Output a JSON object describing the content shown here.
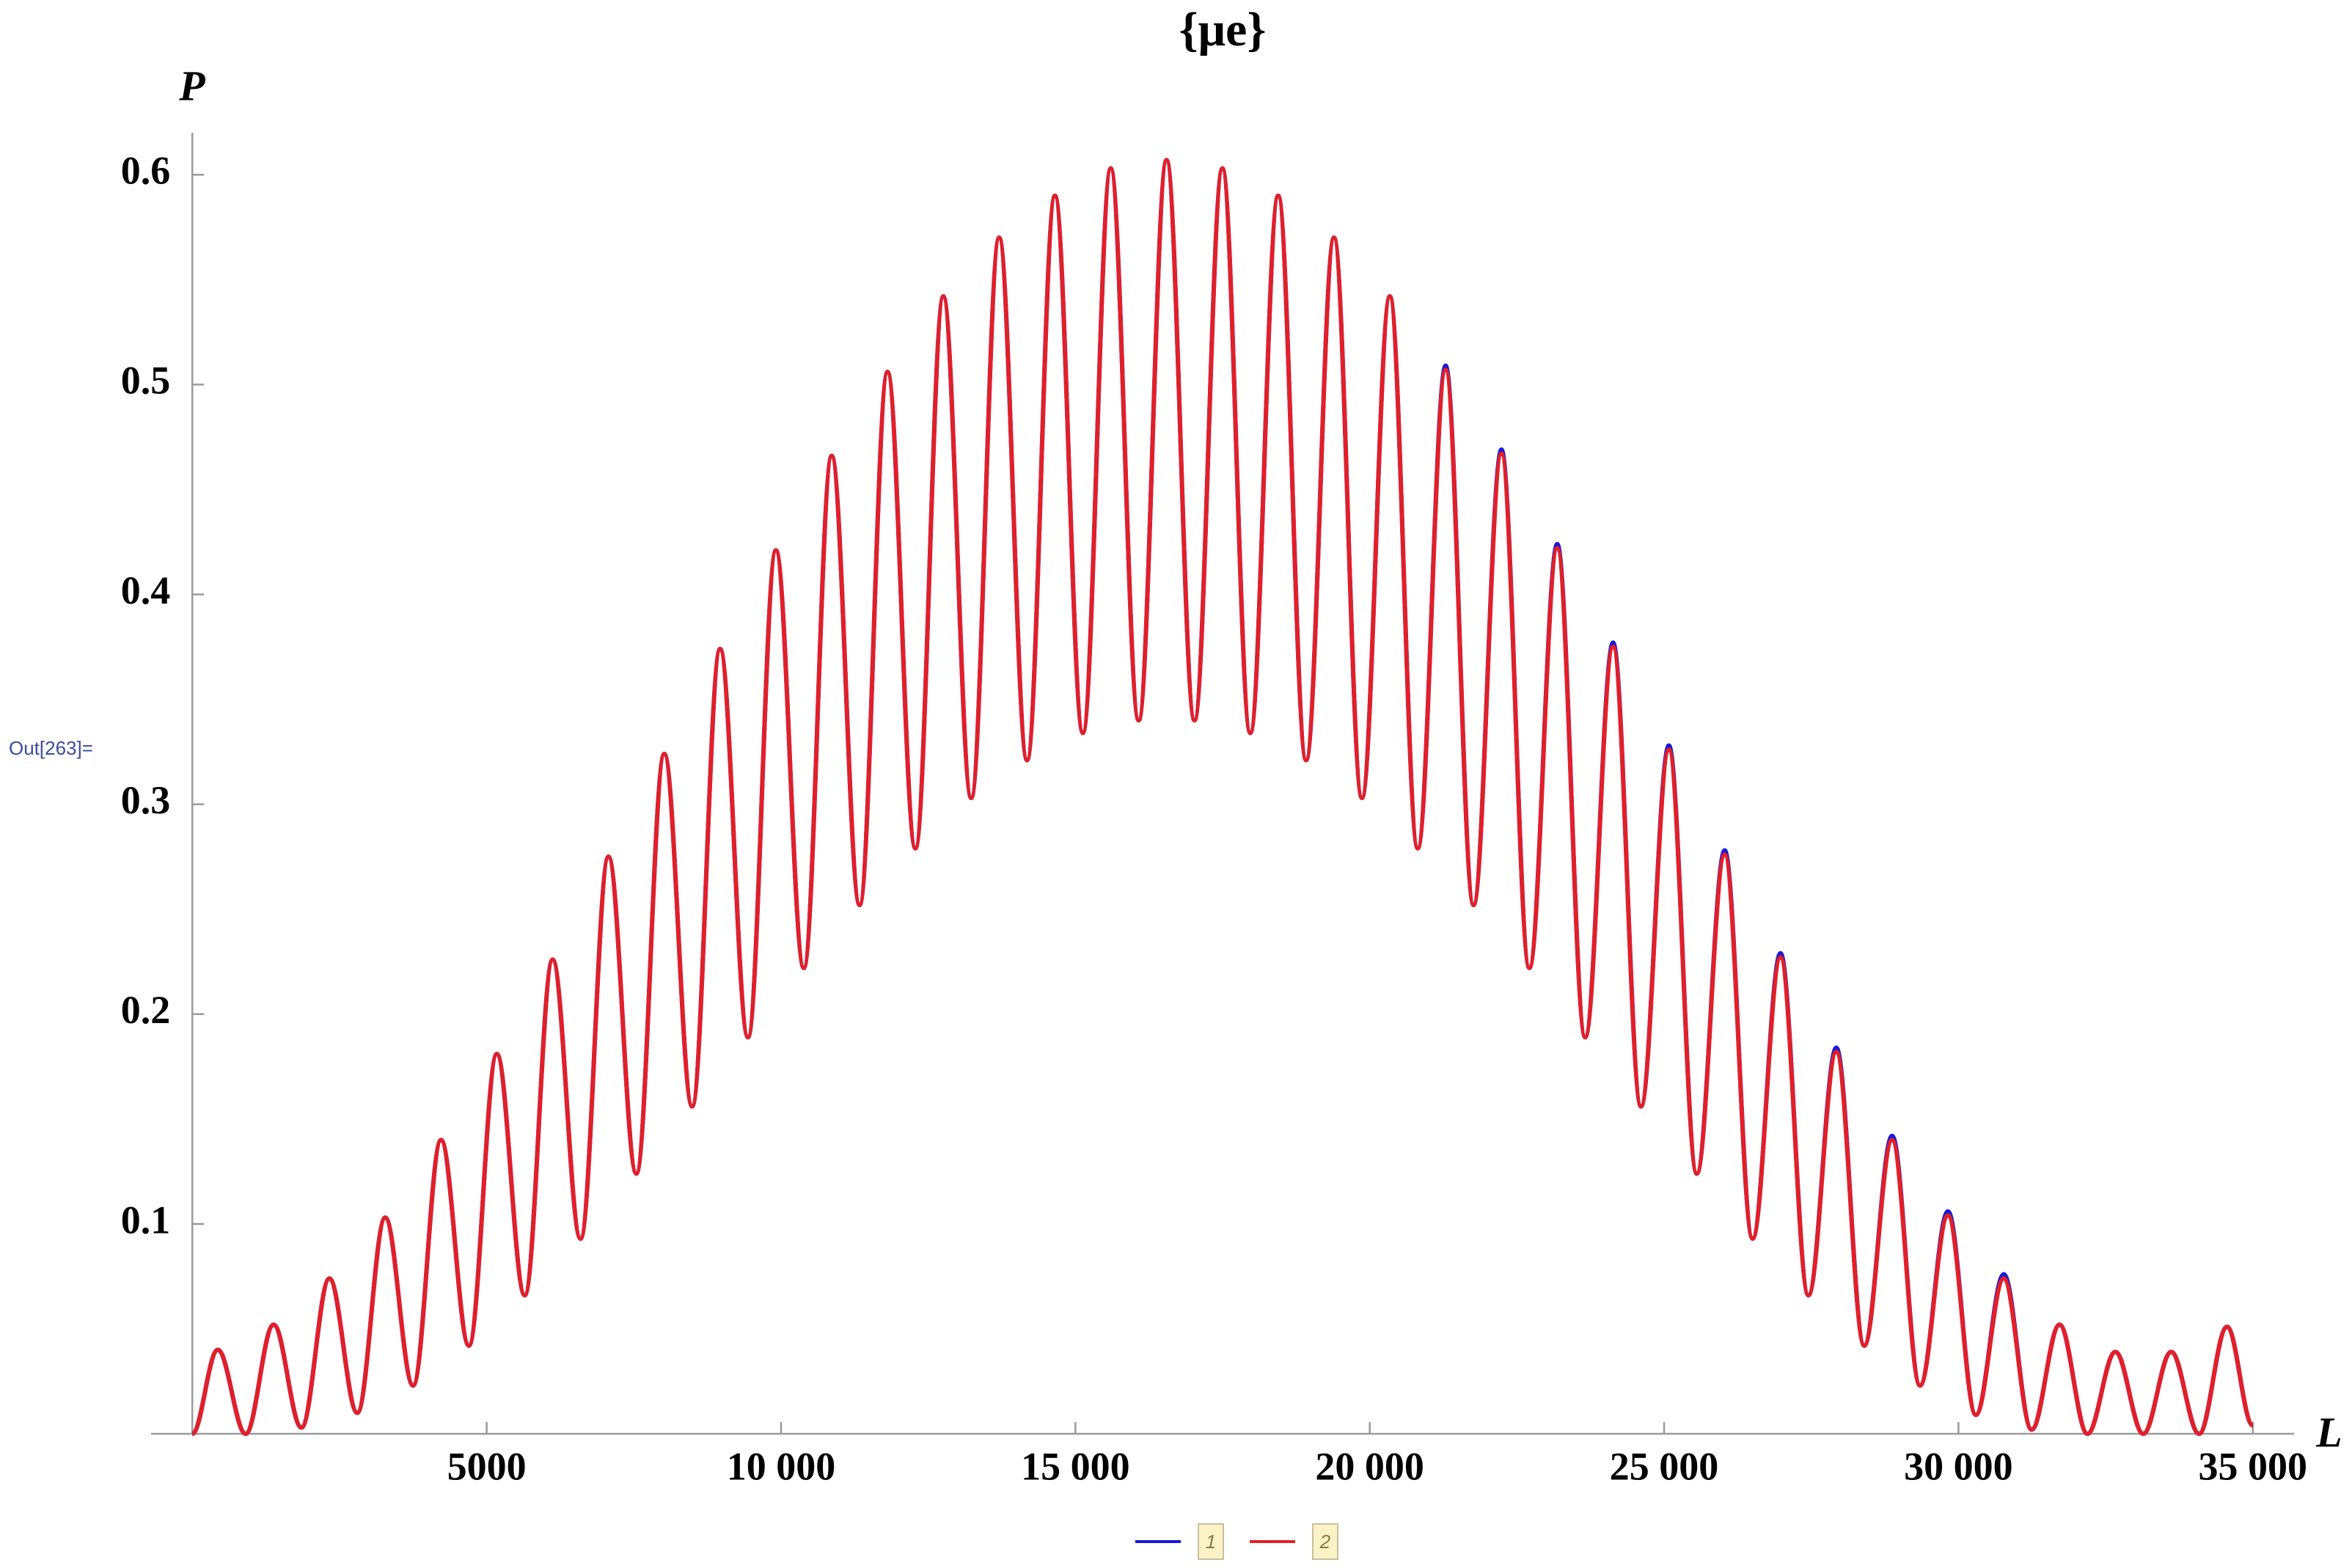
{
  "chart_data": {
    "type": "line",
    "title": "{μe}",
    "y_label": "P",
    "x_label": "L",
    "cell_label": "Out[263]=",
    "x": [
      0,
      433,
      907,
      1381,
      1855,
      2329,
      2803,
      3277,
      3751,
      4225,
      4699,
      5173,
      5647,
      6121,
      6595,
      7069,
      7543,
      8017,
      8491,
      8965,
      9439,
      9913,
      10387,
      10861,
      11335,
      11809,
      12283,
      12757,
      13231,
      13705,
      14179,
      14653,
      15127,
      15601,
      16075,
      16549,
      17023,
      17497,
      17971,
      18445,
      18919,
      19393,
      19867,
      20341,
      20815,
      21289,
      21763,
      22237,
      22711,
      23185,
      23659,
      24133,
      24607,
      25081,
      25555,
      26029,
      26503,
      26977,
      27451,
      27925,
      28399,
      28873,
      29347,
      29821,
      30295,
      30769,
      31243,
      31717,
      32191,
      32665,
      33139,
      33613,
      34087,
      34561,
      35000
    ],
    "series": [
      {
        "name": "1",
        "color": "#1a1ad6",
        "values": [
          0,
          0.04,
          0,
          0.052,
          0.003,
          0.074,
          0.01,
          0.103,
          0.023,
          0.14,
          0.042,
          0.181,
          0.066,
          0.226,
          0.093,
          0.275,
          0.124,
          0.324,
          0.156,
          0.374,
          0.189,
          0.421,
          0.222,
          0.466,
          0.252,
          0.506,
          0.279,
          0.542,
          0.303,
          0.57,
          0.321,
          0.59,
          0.334,
          0.603,
          0.34,
          0.607,
          0.34,
          0.603,
          0.334,
          0.59,
          0.321,
          0.57,
          0.303,
          0.542,
          0.279,
          0.509,
          0.252,
          0.469,
          0.222,
          0.424,
          0.189,
          0.377,
          0.156,
          0.328,
          0.124,
          0.278,
          0.093,
          0.229,
          0.066,
          0.184,
          0.042,
          0.142,
          0.023,
          0.106,
          0.009,
          0.076,
          0.002,
          0.052,
          0,
          0.039,
          0,
          0.039,
          0,
          0.051,
          0.004
        ]
      },
      {
        "name": "2",
        "color": "#e0202a",
        "values": [
          0,
          0.04,
          0,
          0.052,
          0.003,
          0.074,
          0.01,
          0.103,
          0.023,
          0.14,
          0.042,
          0.181,
          0.066,
          0.226,
          0.093,
          0.275,
          0.124,
          0.324,
          0.156,
          0.374,
          0.189,
          0.421,
          0.222,
          0.466,
          0.252,
          0.506,
          0.279,
          0.542,
          0.303,
          0.57,
          0.321,
          0.59,
          0.334,
          0.603,
          0.34,
          0.607,
          0.34,
          0.603,
          0.334,
          0.59,
          0.321,
          0.57,
          0.303,
          0.542,
          0.279,
          0.507,
          0.252,
          0.467,
          0.222,
          0.422,
          0.189,
          0.375,
          0.156,
          0.326,
          0.124,
          0.276,
          0.093,
          0.227,
          0.066,
          0.182,
          0.042,
          0.14,
          0.023,
          0.104,
          0.009,
          0.074,
          0.002,
          0.052,
          0,
          0.039,
          0,
          0.039,
          0,
          0.051,
          0.004
        ]
      }
    ],
    "xlim": [
      -700,
      35700
    ],
    "ylim": [
      0,
      0.62
    ],
    "xticks": [
      5000,
      {
        "value": 10000,
        "label": "10 000"
      },
      {
        "value": 15000,
        "label": "15 000"
      },
      {
        "value": 20000,
        "label": "20 000"
      },
      {
        "value": 25000,
        "label": "25 000"
      },
      {
        "value": 30000,
        "label": "30 000"
      },
      {
        "value": 35000,
        "label": "35 000"
      }
    ],
    "yticks": [
      0.1,
      0.2,
      0.3,
      0.4,
      0.5,
      0.6
    ],
    "legend": "bottom"
  }
}
